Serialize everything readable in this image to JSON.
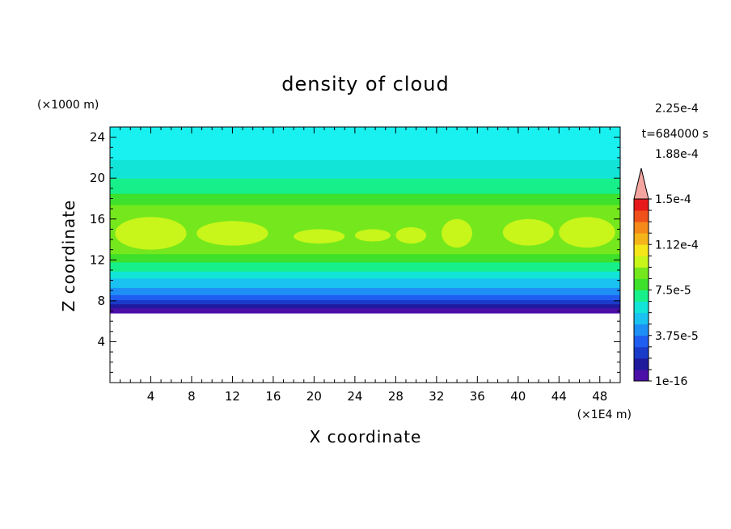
{
  "chart_data": {
    "type": "heatmap",
    "title": "density of cloud",
    "xlabel": "X coordinate",
    "ylabel": "Z coordinate",
    "x_unit": "(×1E4 m)",
    "y_unit": "(×1000 m)",
    "time_label": "t=684000 s",
    "xlim": [
      0,
      50
    ],
    "ylim": [
      0,
      25
    ],
    "x_ticks": [
      4,
      8,
      12,
      16,
      20,
      24,
      28,
      32,
      36,
      40,
      44,
      48
    ],
    "y_ticks": [
      4,
      8,
      12,
      16,
      20,
      24
    ],
    "x_tick_labels": [
      "4",
      "8",
      "12",
      "16",
      "20",
      "24",
      "28",
      "32",
      "36",
      "40",
      "44",
      "48"
    ],
    "y_tick_labels": [
      "4",
      "8",
      "12",
      "16",
      "20",
      "24"
    ],
    "colorbar": {
      "levels_count": 15,
      "colors": [
        "#4b0fa8",
        "#1f1a9c",
        "#1a3bc9",
        "#1f5ef0",
        "#1d8ff5",
        "#19c2f0",
        "#12e4d8",
        "#17f08a",
        "#3de02a",
        "#74e81c",
        "#c8f51a",
        "#f5e61a",
        "#f5b51a",
        "#f58a1a",
        "#f0501a",
        "#e61a1a"
      ],
      "over_color": "#f5a5a0",
      "tick_labels": [
        "1e-16",
        "3.75e-5",
        "7.5e-5",
        "1.12e-4",
        "1.5e-4",
        "1.88e-4",
        "2.25e-4"
      ],
      "tick_level_index": [
        0,
        2,
        4,
        6,
        8,
        10,
        12
      ]
    },
    "bands": [
      {
        "z": [
          6.8,
          7.3
        ],
        "color": "#4b0fa8"
      },
      {
        "z": [
          7.3,
          7.7
        ],
        "color": "#1f1a9c"
      },
      {
        "z": [
          7.7,
          8.1
        ],
        "color": "#1a3bc9"
      },
      {
        "z": [
          8.1,
          8.6
        ],
        "color": "#1f5ef0"
      },
      {
        "z": [
          8.6,
          9.3
        ],
        "color": "#1d8ff5"
      },
      {
        "z": [
          9.3,
          10.2
        ],
        "color": "#19c2f0"
      },
      {
        "z": [
          10.2,
          10.9
        ],
        "color": "#12e4d8"
      },
      {
        "z": [
          10.9,
          11.8
        ],
        "color": "#17f08a"
      },
      {
        "z": [
          11.8,
          12.6
        ],
        "color": "#3de02a"
      },
      {
        "z": [
          12.6,
          17.4
        ],
        "color": "#74e81c"
      },
      {
        "z": [
          17.4,
          18.5
        ],
        "color": "#3de02a"
      },
      {
        "z": [
          18.5,
          20.0
        ],
        "color": "#17f08a"
      },
      {
        "z": [
          20.0,
          21.8
        ],
        "color": "#12e4d8"
      },
      {
        "z": [
          21.8,
          25.0
        ],
        "color": "#19f0f0"
      }
    ],
    "core_color": "#c8f51a",
    "cores": [
      {
        "x": [
          0.5,
          7.5
        ],
        "z": [
          13.0,
          16.2
        ]
      },
      {
        "x": [
          8.5,
          15.5
        ],
        "z": [
          13.4,
          15.8
        ]
      },
      {
        "x": [
          18.0,
          23.0
        ],
        "z": [
          13.6,
          15.0
        ]
      },
      {
        "x": [
          24.0,
          27.5
        ],
        "z": [
          13.8,
          15.0
        ]
      },
      {
        "x": [
          28.0,
          31.0
        ],
        "z": [
          13.6,
          15.2
        ]
      },
      {
        "x": [
          32.5,
          35.5
        ],
        "z": [
          13.2,
          16.0
        ]
      },
      {
        "x": [
          38.5,
          43.5
        ],
        "z": [
          13.4,
          16.0
        ]
      },
      {
        "x": [
          44.0,
          49.5
        ],
        "z": [
          13.2,
          16.2
        ]
      }
    ]
  }
}
